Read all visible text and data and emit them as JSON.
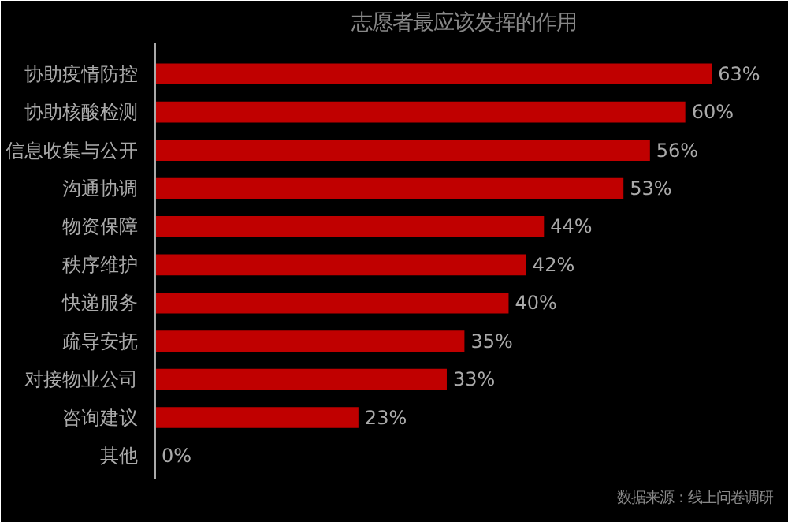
{
  "chart_data": {
    "type": "bar",
    "orientation": "horizontal",
    "title": "志愿者最应该发挥的作用",
    "categories": [
      "协助疫情防控",
      "协助核酸检测",
      "信息收集与公开",
      "沟通协调",
      "物资保障",
      "秩序维护",
      "快递服务",
      "疏导安抚",
      "对接物业公司",
      "咨询建议",
      "其他"
    ],
    "values": [
      63,
      60,
      56,
      53,
      44,
      42,
      40,
      35,
      33,
      23,
      0
    ],
    "value_labels": [
      "63%",
      "60%",
      "56%",
      "53%",
      "44%",
      "42%",
      "40%",
      "35%",
      "33%",
      "23%",
      "0%"
    ],
    "color": "#c00000",
    "grid": false,
    "annotations": [
      "数据来源：线上问卷调研"
    ]
  }
}
